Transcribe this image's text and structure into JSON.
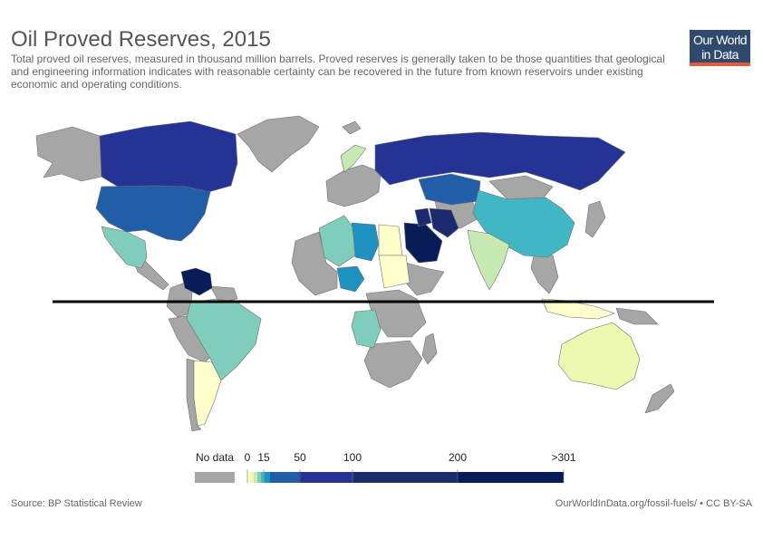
{
  "header": {
    "title": "Oil Proved Reserves, 2015",
    "subtitle": "Total proved oil reserves, measured in thousand million barrels. Proved reserves is generally taken to be those quantities that geological and engineering information indicates with reasonable certainty can be recovered in the future from known reservoirs under existing economic and operating conditions.",
    "logo_line1": "Our World",
    "logo_line2": "in Data"
  },
  "colors": {
    "no_data": "#a6a6a6",
    "ocean": "#ffffff",
    "bins": [
      "#ffffcc",
      "#edf8b1",
      "#c7e9b4",
      "#7fcdbb",
      "#41b6c4",
      "#1d91c0",
      "#225ea8",
      "#253494",
      "#1c2a6e",
      "#081d58"
    ],
    "accent": "#e35a3b",
    "logo_bg": "#2f4a6d"
  },
  "legend": {
    "no_data_label": "No data",
    "ticks": [
      "0",
      "15",
      "50",
      "100",
      "200",
      ">301"
    ]
  },
  "countries": {
    "canada": {
      "bin": 7
    },
    "usa": {
      "bin": 6
    },
    "mexico": {
      "bin": 3
    },
    "venezuela": {
      "bin": 9
    },
    "brazil": {
      "bin": 3
    },
    "argentina": {
      "bin": 0
    },
    "libya": {
      "bin": 5
    },
    "algeria": {
      "bin": 3
    },
    "nigeria": {
      "bin": 5
    },
    "angola": {
      "bin": 3
    },
    "saudi_arabia": {
      "bin": 9
    },
    "iran": {
      "bin": 8
    },
    "iraq": {
      "bin": 8
    },
    "kazakhstan": {
      "bin": 6
    },
    "russia": {
      "bin": 7
    },
    "china": {
      "bin": 4
    },
    "india": {
      "bin": 2
    },
    "australia": {
      "bin": 1
    },
    "norway": {
      "bin": 2
    }
  },
  "footer": {
    "source": "Source: BP Statistical Review",
    "credit": "OurWorldInData.org/fossil-fuels/ • CC BY-SA"
  }
}
